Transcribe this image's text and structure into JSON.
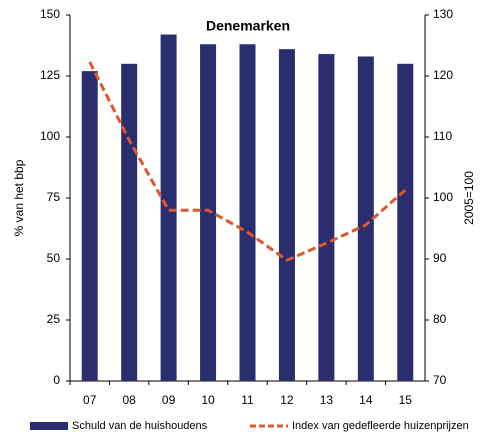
{
  "chart_data": {
    "type": "bar",
    "title": "Denemarken",
    "categories": [
      "07",
      "08",
      "09",
      "10",
      "11",
      "12",
      "13",
      "14",
      "15"
    ],
    "y_label": "% van het bbp",
    "y2_label": "2005=100",
    "ylim": [
      0,
      150
    ],
    "yticks": [
      0,
      25,
      50,
      75,
      100,
      125,
      150
    ],
    "y2lim": [
      70,
      130
    ],
    "y2ticks": [
      70,
      80,
      90,
      100,
      110,
      120,
      130
    ],
    "series": [
      {
        "name": "Schuld van de huishoudens",
        "type": "bar",
        "color": "#2b2e6e",
        "values": [
          127,
          130,
          142,
          138,
          138,
          136,
          134,
          133,
          130
        ]
      },
      {
        "name": "Index van gedefleerde huizenprijzen",
        "type": "line",
        "axis": "y2",
        "color": "#e0582a",
        "values": [
          122.3,
          109.5,
          98,
          98,
          94.4,
          89.8,
          92.6,
          95.6,
          101.3
        ]
      }
    ]
  }
}
